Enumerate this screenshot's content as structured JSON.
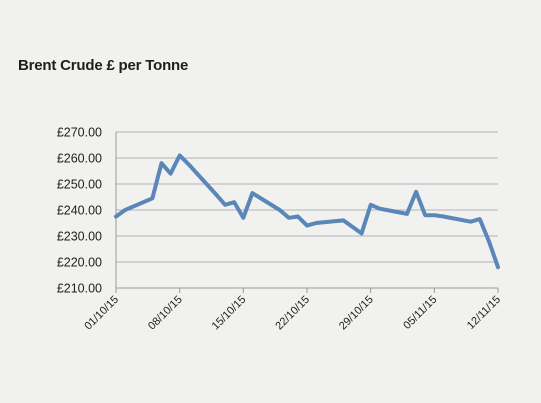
{
  "chart_data": {
    "type": "line",
    "title": "Brent Crude £ per Tonne",
    "xlabel": "",
    "ylabel": "",
    "ylim": [
      210,
      270
    ],
    "grid": "horizontal",
    "legend": "none",
    "line_color": "#5a86b8",
    "y_ticks": [
      "£210.00",
      "£220.00",
      "£230.00",
      "£240.00",
      "£250.00",
      "£260.00",
      "£270.00"
    ],
    "y_tick_values": [
      210,
      220,
      230,
      240,
      250,
      260,
      270
    ],
    "x_ticks": [
      "01/10/15",
      "08/10/15",
      "15/10/15",
      "22/10/15",
      "29/10/15",
      "05/11/15",
      "12/11/15"
    ],
    "series": [
      {
        "x": [
          "01/10/15",
          "02/10/15",
          "05/10/15",
          "06/10/15",
          "07/10/15",
          "08/10/15",
          "09/10/15",
          "12/10/15",
          "13/10/15",
          "14/10/15",
          "15/10/15",
          "16/10/15",
          "19/10/15",
          "20/10/15",
          "21/10/15",
          "22/10/15",
          "23/10/15",
          "26/10/15",
          "27/10/15",
          "28/10/15",
          "29/10/15",
          "30/10/15",
          "02/11/15",
          "03/11/15",
          "04/11/15",
          "05/11/15",
          "06/11/15",
          "09/11/15",
          "10/11/15",
          "11/11/15",
          "12/11/15"
        ],
        "values": [
          237.5,
          240,
          244.5,
          258,
          254,
          261,
          257.5,
          246,
          242,
          243,
          237,
          246.5,
          240,
          237,
          237.5,
          234,
          235,
          236,
          233.5,
          231,
          242,
          240.5,
          238.5,
          247,
          238,
          238,
          237.5,
          235.5,
          236.5,
          228,
          218
        ]
      }
    ]
  }
}
